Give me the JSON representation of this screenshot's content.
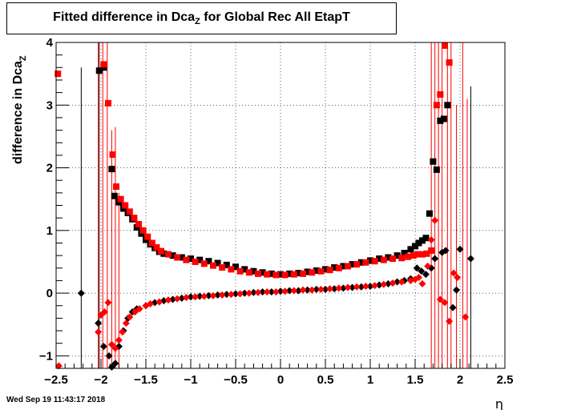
{
  "footer_timestamp": "Wed Sep 19 11:43:17 2018",
  "chart_data": {
    "type": "scatter",
    "title": {
      "main": "Fitted difference in Dca",
      "sub": "Z",
      "rest": " for Global Rec All EtapT"
    },
    "xlabel": "η",
    "ylabel": {
      "main": "difference in Dca",
      "sub": "Z"
    },
    "xlim": [
      -2.5,
      2.5
    ],
    "ylim": [
      -1.2,
      4.0
    ],
    "x_ticks": [
      -2.5,
      -2,
      -1.5,
      -1,
      -0.5,
      0,
      0.5,
      1,
      1.5,
      2,
      2.5
    ],
    "x_tick_labels": [
      "−2.5",
      "−2",
      "−1.5",
      "−1",
      "−0.5",
      "0",
      "0.5",
      "1",
      "1.5",
      "2",
      "2.5"
    ],
    "y_ticks": [
      -1,
      0,
      1,
      2,
      3,
      4
    ],
    "y_tick_labels": [
      "−1",
      "0",
      "1",
      "2",
      "3",
      "4"
    ],
    "grid": true,
    "colors": {
      "black_series": "#000000",
      "red_series": "#ff0000"
    },
    "series": [
      {
        "marker": "square",
        "color": "#000000",
        "points": [
          [
            -2.02,
            3.55
          ],
          [
            -1.97,
            3.6
          ],
          [
            -1.88,
            1.98
          ],
          [
            -1.85,
            1.55
          ],
          [
            -1.8,
            1.45
          ],
          [
            -1.75,
            1.35
          ],
          [
            -1.7,
            1.28
          ],
          [
            -1.65,
            1.18
          ],
          [
            -1.6,
            1.05
          ],
          [
            -1.55,
            0.95
          ],
          [
            -1.5,
            0.85
          ],
          [
            -1.45,
            0.78
          ],
          [
            -1.4,
            0.72
          ],
          [
            -1.35,
            0.66
          ],
          [
            -1.3,
            0.63
          ],
          [
            -1.2,
            0.6
          ],
          [
            -1.1,
            0.57
          ],
          [
            -1.0,
            0.55
          ],
          [
            -0.9,
            0.53
          ],
          [
            -0.8,
            0.51
          ],
          [
            -0.7,
            0.48
          ],
          [
            -0.6,
            0.45
          ],
          [
            -0.5,
            0.42
          ],
          [
            -0.4,
            0.38
          ],
          [
            -0.3,
            0.35
          ],
          [
            -0.2,
            0.33
          ],
          [
            -0.1,
            0.31
          ],
          [
            0.0,
            0.3
          ],
          [
            0.1,
            0.31
          ],
          [
            0.2,
            0.32
          ],
          [
            0.3,
            0.34
          ],
          [
            0.4,
            0.36
          ],
          [
            0.5,
            0.38
          ],
          [
            0.6,
            0.41
          ],
          [
            0.7,
            0.43
          ],
          [
            0.8,
            0.46
          ],
          [
            0.9,
            0.49
          ],
          [
            1.0,
            0.52
          ],
          [
            1.1,
            0.55
          ],
          [
            1.2,
            0.57
          ],
          [
            1.3,
            0.6
          ],
          [
            1.38,
            0.64
          ],
          [
            1.45,
            0.7
          ],
          [
            1.5,
            0.75
          ],
          [
            1.54,
            0.8
          ],
          [
            1.58,
            0.84
          ],
          [
            1.62,
            0.88
          ],
          [
            1.66,
            1.27
          ],
          [
            1.7,
            2.1
          ],
          [
            1.74,
            1.97
          ],
          [
            1.78,
            2.75
          ],
          [
            1.82,
            2.78
          ],
          [
            1.86,
            3.0
          ]
        ]
      },
      {
        "marker": "square",
        "color": "#ff0000",
        "points": [
          [
            -2.48,
            3.5
          ],
          [
            -1.97,
            3.65
          ],
          [
            -1.92,
            3.03
          ],
          [
            -1.87,
            2.21
          ],
          [
            -1.83,
            1.7
          ],
          [
            -1.78,
            1.5
          ],
          [
            -1.73,
            1.4
          ],
          [
            -1.68,
            1.3
          ],
          [
            -1.63,
            1.2
          ],
          [
            -1.58,
            1.1
          ],
          [
            -1.53,
            1.0
          ],
          [
            -1.48,
            0.9
          ],
          [
            -1.43,
            0.8
          ],
          [
            -1.38,
            0.73
          ],
          [
            -1.33,
            0.67
          ],
          [
            -1.25,
            0.62
          ],
          [
            -1.15,
            0.57
          ],
          [
            -1.05,
            0.53
          ],
          [
            -0.95,
            0.5
          ],
          [
            -0.85,
            0.47
          ],
          [
            -0.75,
            0.44
          ],
          [
            -0.65,
            0.41
          ],
          [
            -0.55,
            0.38
          ],
          [
            -0.45,
            0.35
          ],
          [
            -0.35,
            0.33
          ],
          [
            -0.25,
            0.31
          ],
          [
            -0.15,
            0.3
          ],
          [
            -0.05,
            0.29
          ],
          [
            0.05,
            0.29
          ],
          [
            0.15,
            0.3
          ],
          [
            0.25,
            0.31
          ],
          [
            0.35,
            0.33
          ],
          [
            0.45,
            0.35
          ],
          [
            0.55,
            0.37
          ],
          [
            0.65,
            0.4
          ],
          [
            0.75,
            0.43
          ],
          [
            0.85,
            0.46
          ],
          [
            0.95,
            0.49
          ],
          [
            1.05,
            0.51
          ],
          [
            1.15,
            0.53
          ],
          [
            1.25,
            0.55
          ],
          [
            1.35,
            0.56
          ],
          [
            1.42,
            0.58
          ],
          [
            1.48,
            0.6
          ],
          [
            1.53,
            0.62
          ],
          [
            1.58,
            0.62
          ],
          [
            1.63,
            0.63
          ],
          [
            1.68,
            0.68
          ],
          [
            1.74,
            3.0
          ],
          [
            1.78,
            3.17
          ],
          [
            1.83,
            3.95
          ],
          [
            1.88,
            3.68
          ]
        ]
      },
      {
        "marker": "diamond",
        "color": "#000000",
        "points": [
          [
            -2.22,
            0.0
          ],
          [
            -2.03,
            -0.48
          ],
          [
            -1.97,
            -0.85
          ],
          [
            -1.91,
            -1.0
          ],
          [
            -1.88,
            -1.18
          ],
          [
            -1.84,
            -1.12
          ],
          [
            -1.8,
            -0.85
          ],
          [
            -1.75,
            -0.6
          ],
          [
            -1.7,
            -0.4
          ],
          [
            -1.65,
            -0.3
          ],
          [
            -1.6,
            -0.25
          ],
          [
            -1.5,
            -0.2
          ],
          [
            -1.4,
            -0.15
          ],
          [
            -1.3,
            -0.12
          ],
          [
            -1.2,
            -0.1
          ],
          [
            -1.1,
            -0.08
          ],
          [
            -1.0,
            -0.06
          ],
          [
            -0.9,
            -0.05
          ],
          [
            -0.8,
            -0.04
          ],
          [
            -0.7,
            -0.03
          ],
          [
            -0.6,
            -0.02
          ],
          [
            -0.5,
            -0.01
          ],
          [
            -0.4,
            0.0
          ],
          [
            -0.3,
            0.01
          ],
          [
            -0.2,
            0.02
          ],
          [
            -0.1,
            0.02
          ],
          [
            0.0,
            0.03
          ],
          [
            0.1,
            0.04
          ],
          [
            0.2,
            0.04
          ],
          [
            0.3,
            0.05
          ],
          [
            0.4,
            0.06
          ],
          [
            0.5,
            0.06
          ],
          [
            0.6,
            0.07
          ],
          [
            0.7,
            0.08
          ],
          [
            0.8,
            0.09
          ],
          [
            0.9,
            0.1
          ],
          [
            1.0,
            0.11
          ],
          [
            1.1,
            0.13
          ],
          [
            1.2,
            0.15
          ],
          [
            1.3,
            0.18
          ],
          [
            1.38,
            0.2
          ],
          [
            1.45,
            0.23
          ],
          [
            1.52,
            0.4
          ],
          [
            1.57,
            0.35
          ],
          [
            1.62,
            0.3
          ],
          [
            1.68,
            0.4
          ],
          [
            1.72,
            0.55
          ],
          [
            1.8,
            0.65
          ],
          [
            1.84,
            0.68
          ],
          [
            1.92,
            -0.23
          ],
          [
            1.96,
            0.05
          ],
          [
            2.0,
            0.7
          ],
          [
            2.12,
            0.55
          ]
        ]
      },
      {
        "marker": "diamond",
        "color": "#ff0000",
        "points": [
          [
            -2.47,
            -1.16
          ],
          [
            -2.03,
            -0.62
          ],
          [
            -2.0,
            -0.35
          ],
          [
            -1.96,
            -0.3
          ],
          [
            -1.92,
            -0.15
          ],
          [
            -1.88,
            -0.82
          ],
          [
            -1.84,
            -0.88
          ],
          [
            -1.8,
            -0.75
          ],
          [
            -1.76,
            -0.62
          ],
          [
            -1.72,
            -0.48
          ],
          [
            -1.68,
            -0.38
          ],
          [
            -1.62,
            -0.3
          ],
          [
            -1.57,
            -0.25
          ],
          [
            -1.5,
            -0.2
          ],
          [
            -1.45,
            -0.17
          ],
          [
            -1.35,
            -0.14
          ],
          [
            -1.25,
            -0.11
          ],
          [
            -1.15,
            -0.09
          ],
          [
            -1.05,
            -0.07
          ],
          [
            -0.95,
            -0.06
          ],
          [
            -0.85,
            -0.05
          ],
          [
            -0.75,
            -0.04
          ],
          [
            -0.65,
            -0.03
          ],
          [
            -0.55,
            -0.02
          ],
          [
            -0.45,
            -0.01
          ],
          [
            -0.35,
            0.0
          ],
          [
            -0.25,
            0.01
          ],
          [
            -0.15,
            0.02
          ],
          [
            -0.05,
            0.02
          ],
          [
            0.05,
            0.03
          ],
          [
            0.15,
            0.04
          ],
          [
            0.25,
            0.05
          ],
          [
            0.35,
            0.05
          ],
          [
            0.45,
            0.06
          ],
          [
            0.55,
            0.07
          ],
          [
            0.65,
            0.08
          ],
          [
            0.75,
            0.09
          ],
          [
            0.85,
            0.1
          ],
          [
            0.95,
            0.11
          ],
          [
            1.05,
            0.12
          ],
          [
            1.15,
            0.14
          ],
          [
            1.25,
            0.16
          ],
          [
            1.35,
            0.18
          ],
          [
            1.45,
            0.2
          ],
          [
            1.5,
            0.22
          ],
          [
            1.54,
            0.25
          ],
          [
            1.58,
            0.15
          ],
          [
            1.64,
            0.43
          ],
          [
            1.68,
            0.85
          ],
          [
            1.72,
            1.16
          ],
          [
            1.78,
            -0.1
          ],
          [
            1.83,
            -0.15
          ],
          [
            1.88,
            -0.45
          ],
          [
            1.93,
            0.32
          ],
          [
            1.97,
            0.25
          ],
          [
            2.06,
            -0.38
          ]
        ]
      }
    ],
    "error_bars": [
      {
        "x": -2.22,
        "low": -1.2,
        "high": 3.6,
        "color": "#000000"
      },
      {
        "x": -2.02,
        "low": -1.2,
        "high": 4.0,
        "color": "#000000"
      },
      {
        "x": -2.03,
        "low": -1.2,
        "high": 4.0,
        "color": "#ff0000"
      },
      {
        "x": -1.98,
        "low": -1.2,
        "high": 4.0,
        "color": "#ff0000"
      },
      {
        "x": -1.93,
        "low": -1.2,
        "high": 4.0,
        "color": "#ff0000"
      },
      {
        "x": -1.88,
        "low": -1.2,
        "high": 2.6,
        "color": "#ff0000"
      },
      {
        "x": -1.84,
        "low": -1.2,
        "high": 2.65,
        "color": "#ff0000"
      },
      {
        "x": -1.8,
        "low": -1.2,
        "high": 1.6,
        "color": "#ff0000"
      },
      {
        "x": 1.68,
        "low": -1.2,
        "high": 4.0,
        "color": "#ff0000"
      },
      {
        "x": 1.72,
        "low": -1.2,
        "high": 4.0,
        "color": "#ff0000"
      },
      {
        "x": 1.76,
        "low": -1.2,
        "high": 4.0,
        "color": "#ff0000"
      },
      {
        "x": 1.8,
        "low": -1.2,
        "high": 4.0,
        "color": "#ff0000"
      },
      {
        "x": 1.86,
        "low": -1.2,
        "high": 4.0,
        "color": "#ff0000"
      },
      {
        "x": 1.9,
        "low": -1.2,
        "high": 4.0,
        "color": "#ff0000"
      },
      {
        "x": 1.96,
        "low": -1.2,
        "high": 3.0,
        "color": "#ff0000"
      },
      {
        "x": 2.03,
        "low": -1.2,
        "high": 4.0,
        "color": "#ff0000"
      },
      {
        "x": 2.08,
        "low": -1.2,
        "high": 3.1,
        "color": "#ff0000"
      },
      {
        "x": 2.12,
        "low": -1.2,
        "high": 3.3,
        "color": "#000000"
      }
    ]
  }
}
